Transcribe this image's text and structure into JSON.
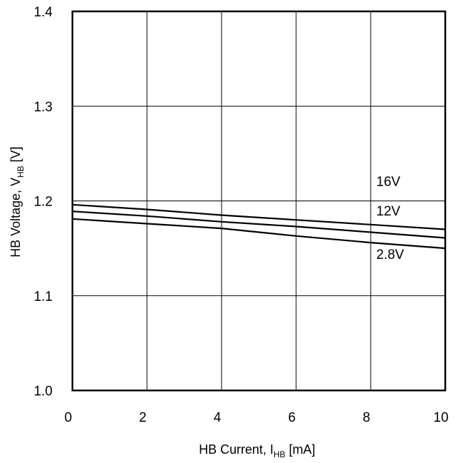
{
  "chart_data": {
    "type": "line",
    "xlabel": {
      "main": "HB Current, I",
      "sub": "HB",
      "tail": " [mA]"
    },
    "ylabel": {
      "main": "HB Voltage, V",
      "sub": "HB",
      "tail": " [V]"
    },
    "xlim": [
      0,
      10
    ],
    "ylim": [
      1.0,
      1.4
    ],
    "x_ticks": [
      0,
      2,
      4,
      6,
      8,
      10
    ],
    "x_tick_labels": [
      "0",
      "2",
      "4",
      "6",
      "8",
      "10"
    ],
    "y_ticks": [
      1.0,
      1.1,
      1.2,
      1.3,
      1.4
    ],
    "y_tick_labels": [
      "1.0",
      "1.1",
      "1.2",
      "1.3",
      "1.4"
    ],
    "grid": true,
    "series": [
      {
        "name": "16V",
        "x": [
          0,
          2,
          4,
          6,
          8,
          10
        ],
        "y": [
          1.196,
          1.191,
          1.185,
          1.18,
          1.175,
          1.17
        ]
      },
      {
        "name": "12V",
        "x": [
          0,
          2,
          4,
          6,
          8,
          10
        ],
        "y": [
          1.189,
          1.184,
          1.178,
          1.173,
          1.167,
          1.161
        ]
      },
      {
        "name": "2.8V",
        "x": [
          0,
          2,
          4,
          6,
          8,
          10
        ],
        "y": [
          1.181,
          1.176,
          1.171,
          1.163,
          1.156,
          1.15
        ]
      }
    ],
    "series_label_positions": [
      {
        "x": 8.15,
        "y": 1.221
      },
      {
        "x": 8.15,
        "y": 1.19
      },
      {
        "x": 8.15,
        "y": 1.144
      }
    ],
    "colors": {
      "line": "#000000",
      "grid": "#000000",
      "background": "#ffffff"
    }
  }
}
